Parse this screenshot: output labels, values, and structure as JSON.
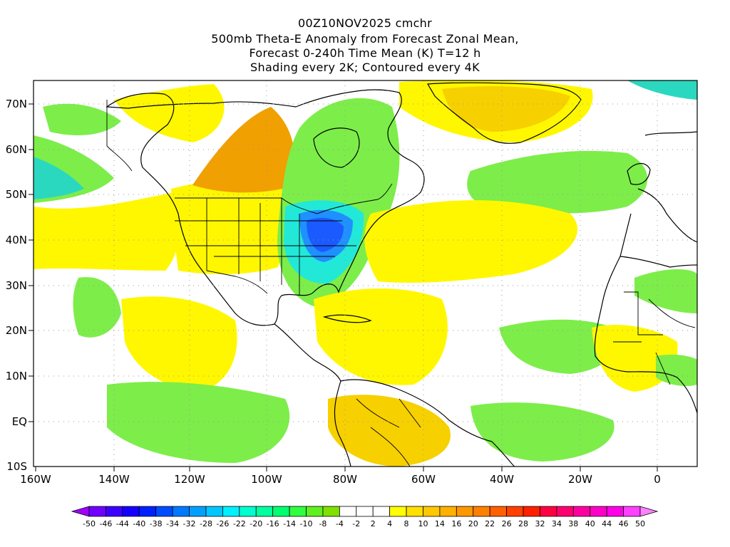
{
  "header": {
    "line1": "00Z10NOV2025 cmchr",
    "line2": "500mb Theta-E Anomaly from Forecast Zonal Mean,",
    "line3": "Forecast 0-240h Time Mean (K) T=12 h",
    "line4": "Shading every 2K; Contoured every 4K"
  },
  "axes": {
    "lon_labels": [
      "160W",
      "140W",
      "120W",
      "100W",
      "80W",
      "60W",
      "40W",
      "20W",
      "0"
    ],
    "lat_labels": [
      "70N",
      "60N",
      "50N",
      "40N",
      "30N",
      "20N",
      "10N",
      "EQ",
      "10S"
    ]
  },
  "colorbar": {
    "labels": [
      "-50",
      "-46",
      "-44",
      "-40",
      "-38",
      "-34",
      "-32",
      "-28",
      "-26",
      "-22",
      "-20",
      "-16",
      "-14",
      "-10",
      "-8",
      "-4",
      "-2",
      "2",
      "4",
      "8",
      "10",
      "14",
      "16",
      "20",
      "22",
      "26",
      "28",
      "32",
      "34",
      "38",
      "40",
      "44",
      "46",
      "50"
    ],
    "colors": [
      "#a000ff",
      "#7000ff",
      "#3c00ff",
      "#1400ff",
      "#0020ff",
      "#004cff",
      "#0078ff",
      "#00a0ff",
      "#00c8ff",
      "#00f0ff",
      "#00ffd0",
      "#00ffa0",
      "#00ff70",
      "#30ff40",
      "#60f020",
      "#80e000",
      "#ffffff",
      "#ffffff",
      "#ffffff",
      "#ffff00",
      "#ffe000",
      "#ffc800",
      "#ffb000",
      "#ff9800",
      "#ff8000",
      "#ff6000",
      "#ff4000",
      "#ff2000",
      "#ff0040",
      "#ff0070",
      "#ff00a0",
      "#ff00c8",
      "#ff00e8",
      "#ff40ff",
      "#ff80ff"
    ]
  },
  "map_colors": {
    "green": "#7ded4a",
    "yellow": "#fff700",
    "gold": "#f7d000",
    "orange": "#f0a000",
    "cyan": "#22e8d8",
    "teal": "#2ad8c0",
    "blue": "#1e90ff",
    "deepblue": "#1a5aff"
  }
}
